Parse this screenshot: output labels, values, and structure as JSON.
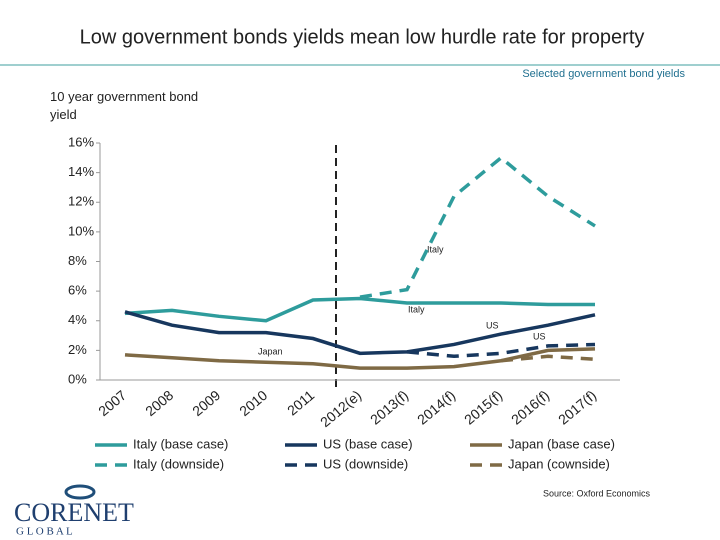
{
  "chart_data": {
    "type": "line",
    "title": "Low government bonds yields mean low hurdle rate for property",
    "subtitle": "Selected government bond yields",
    "y_label": "10 year government bond yield",
    "categories": [
      "2007",
      "2008",
      "2009",
      "2010",
      "2011",
      "2012(e)",
      "2013(f)",
      "2014(f)",
      "2015(f)",
      "2016(f)",
      "2017(f)"
    ],
    "ylim": [
      0,
      16
    ],
    "yticks": [
      {
        "value": 0,
        "label": "0%"
      },
      {
        "value": 2,
        "label": "2%"
      },
      {
        "value": 4,
        "label": "4%"
      },
      {
        "value": 6,
        "label": "6%"
      },
      {
        "value": 8,
        "label": "8%"
      },
      {
        "value": 10,
        "label": "10%"
      },
      {
        "value": 12,
        "label": "12%"
      },
      {
        "value": 14,
        "label": "14%"
      },
      {
        "value": 16,
        "label": "16%"
      }
    ],
    "series": [
      {
        "name": "Italy (base case)",
        "color": "#2e9c9c",
        "style": "solid",
        "values": [
          4.5,
          4.7,
          4.3,
          4.0,
          5.4,
          5.5,
          5.2,
          5.2,
          5.2,
          5.1,
          5.1
        ]
      },
      {
        "name": "US (base case)",
        "color": "#17375e",
        "style": "solid",
        "values": [
          4.6,
          3.7,
          3.2,
          3.2,
          2.8,
          1.8,
          1.9,
          2.4,
          3.1,
          3.7,
          4.4
        ]
      },
      {
        "name": "Japan (base case)",
        "color": "#7f6a45",
        "style": "solid",
        "values": [
          1.7,
          1.5,
          1.3,
          1.2,
          1.1,
          0.8,
          0.8,
          0.9,
          1.3,
          2.0,
          2.1
        ]
      },
      {
        "name": "Italy (downside)",
        "color": "#2e9c9c",
        "style": "dashed",
        "values": [
          null,
          null,
          null,
          null,
          null,
          5.6,
          6.1,
          12.4,
          15.0,
          12.4,
          10.4
        ]
      },
      {
        "name": "US (downside)",
        "color": "#17375e",
        "style": "dashed",
        "values": [
          null,
          null,
          null,
          null,
          null,
          null,
          1.9,
          1.6,
          1.8,
          2.3,
          2.4
        ]
      },
      {
        "name": "Japan (cownside)",
        "color": "#7f6a45",
        "style": "dashed",
        "values": [
          null,
          null,
          null,
          null,
          null,
          null,
          null,
          null,
          1.3,
          1.6,
          1.4
        ]
      }
    ],
    "annotations": [
      "Italy",
      "Italy",
      "US",
      "US",
      "Japan"
    ],
    "source": "Source: Oxford Economics"
  },
  "logo": {
    "name": "CORENET",
    "sub": "G L O B A L"
  }
}
